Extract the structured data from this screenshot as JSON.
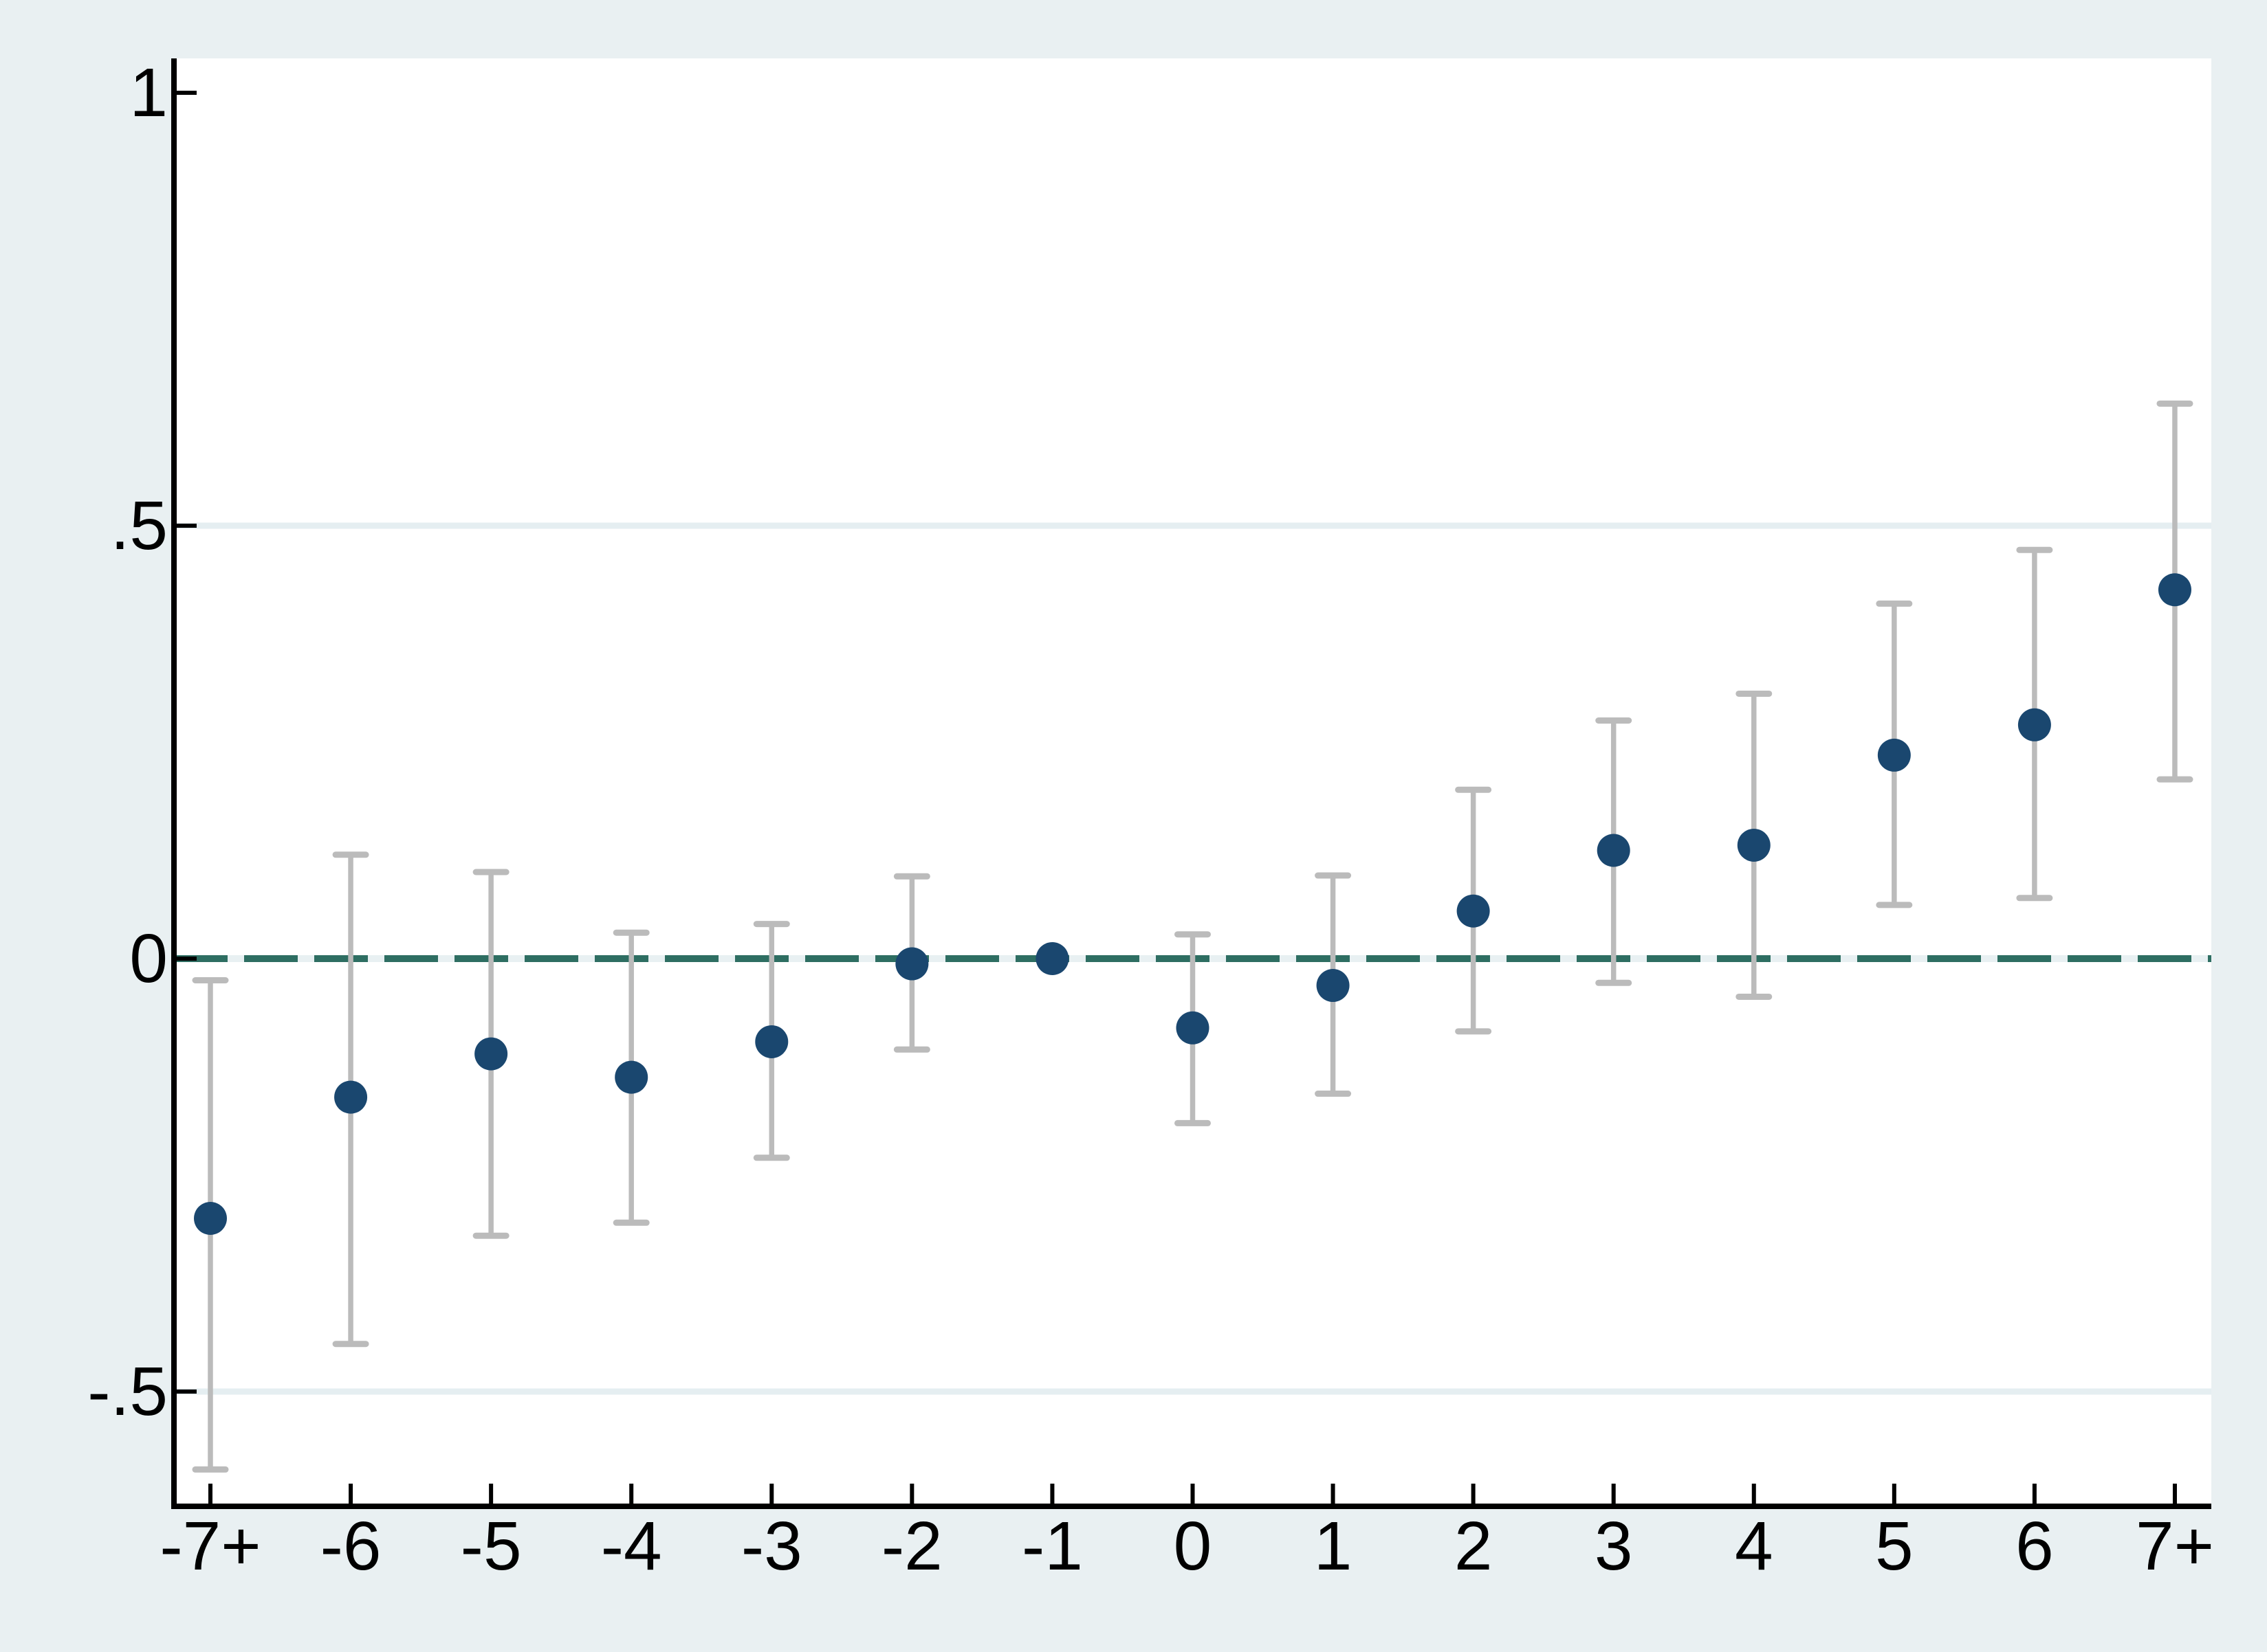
{
  "window": {
    "background_color": "#E9F0F2"
  },
  "chart_data": {
    "type": "scatter",
    "subtype": "event-study-coefficient-plot-with-ci",
    "title": "",
    "xlabel": "",
    "ylabel": "",
    "legend": {
      "visible": false
    },
    "categories": [
      "-7+",
      "-6",
      "-5",
      "-4",
      "-3",
      "-2",
      "-1",
      "0",
      "1",
      "2",
      "3",
      "4",
      "5",
      "6",
      "7+"
    ],
    "series": [
      {
        "name": "estimate",
        "values": [
          -0.3,
          -0.16,
          -0.11,
          -0.137,
          -0.096,
          -0.006,
          0.0,
          -0.08,
          -0.031,
          0.055,
          0.125,
          0.131,
          0.235,
          0.27,
          0.426
        ]
      },
      {
        "name": "ci_lower",
        "values": [
          -0.59,
          -0.445,
          -0.32,
          -0.305,
          -0.23,
          -0.105,
          null,
          -0.19,
          -0.156,
          -0.084,
          -0.028,
          -0.044,
          0.062,
          0.07,
          0.207
        ]
      },
      {
        "name": "ci_upper",
        "values": [
          -0.025,
          0.12,
          0.1,
          0.03,
          0.04,
          0.095,
          null,
          0.028,
          0.096,
          0.195,
          0.275,
          0.306,
          0.41,
          0.472,
          0.641
        ]
      }
    ],
    "reference_category": "-1",
    "x_axis": {
      "tick_labels": [
        "-7+",
        "-6",
        "-5",
        "-4",
        "-3",
        "-2",
        "-1",
        "0",
        "1",
        "2",
        "3",
        "4",
        "5",
        "6",
        "7+"
      ]
    },
    "y_axis": {
      "tick_labels": [
        "1",
        ".5",
        "0",
        "-.5"
      ],
      "tick_values": [
        1,
        0.5,
        0,
        -0.5
      ],
      "range": [
        -0.635,
        1.04
      ],
      "gridlines_at": [
        0.5,
        -0.5
      ]
    },
    "ref_line": {
      "value": 0,
      "style": "dashed"
    },
    "grid": true,
    "colors": {
      "estimate_marker": "#1A476F",
      "ci_bar": "#BBBBBB",
      "ref_line": "#2E6E62",
      "ref_line_gap": "#E8F0F2",
      "gridline": "#E5EEF1",
      "axis": "#000000",
      "text": "#000000",
      "plot_background": "#FFFFFF",
      "background": "#E9F0F2"
    }
  }
}
